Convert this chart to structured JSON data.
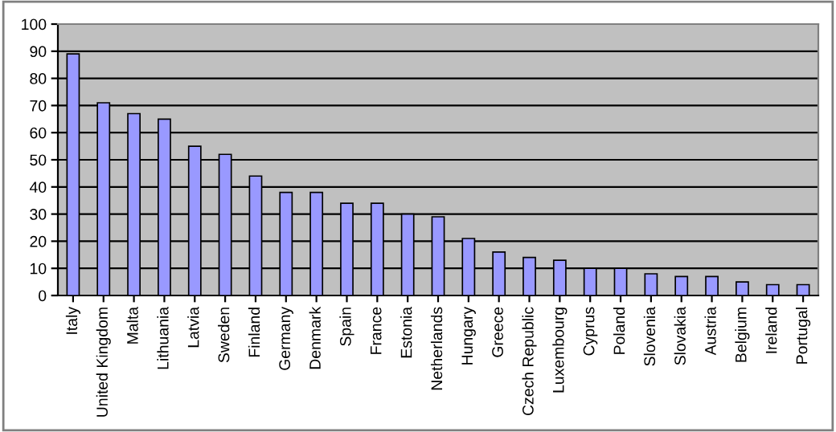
{
  "chart_data": {
    "type": "bar",
    "categories": [
      "Italy",
      "United Kingdom",
      "Malta",
      "Lithuania",
      "Latvia",
      "Sweden",
      "Finland",
      "Germany",
      "Denmark",
      "Spain",
      "France",
      "Estonia",
      "Netherlands",
      "Hungary",
      "Greece",
      "Czech Republic",
      "Luxembourg",
      "Cyprus",
      "Poland",
      "Slovenia",
      "Slovakia",
      "Austria",
      "Belgium",
      "Ireland",
      "Portugal"
    ],
    "values": [
      89,
      71,
      67,
      65,
      55,
      52,
      44,
      38,
      38,
      34,
      34,
      30,
      29,
      21,
      16,
      14,
      13,
      10,
      10,
      8,
      7,
      7,
      5,
      4,
      4
    ],
    "color": "#9999ff",
    "ylim": [
      0,
      100
    ],
    "yticks": [
      0,
      10,
      20,
      30,
      40,
      50,
      60,
      70,
      80,
      90,
      100
    ],
    "grid": "y"
  }
}
